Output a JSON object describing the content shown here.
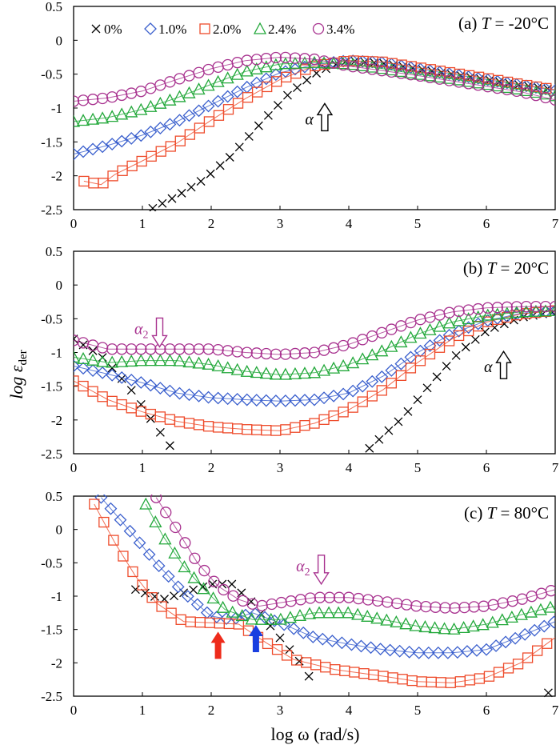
{
  "figure": {
    "ylabel_main": "log ε",
    "ylabel_sub": "der",
    "xlabel": "log ω (rad/s)"
  },
  "legend": [
    {
      "label": "0%",
      "symbol": "×",
      "color": "#000000"
    },
    {
      "label": "1.0%",
      "symbol": "◇",
      "color": "#3a5fcd"
    },
    {
      "label": "2.0%",
      "symbol": "□",
      "color": "#ee4b2b"
    },
    {
      "label": "2.4%",
      "symbol": "△",
      "color": "#22a83a"
    },
    {
      "label": "3.4%",
      "symbol": "○",
      "color": "#a8328f"
    }
  ],
  "chart_data": [
    {
      "type": "scatter",
      "title": "(a) T = -20°C",
      "title_prefix": "(a) ",
      "title_var": "T",
      "title_value": " = -20°C",
      "xlim": [
        0,
        7
      ],
      "ylim": [
        -2.5,
        0.5
      ],
      "xticks": [
        "0",
        "1",
        "2",
        "3",
        "4",
        "5",
        "6",
        "7"
      ],
      "yticks": [
        "0.5",
        "0",
        "-0.5",
        "-1",
        "-1.5",
        "-2",
        "-2.5"
      ],
      "annotations": [
        {
          "label": "α",
          "x": 3.65,
          "y": -1.1,
          "direction": "up",
          "color": "#000000"
        }
      ],
      "series": [
        {
          "name": "0%",
          "points": [
            [
              1.15,
              -2.48
            ],
            [
              1.5,
              -2.3
            ],
            [
              1.9,
              -2.05
            ],
            [
              2.3,
              -1.7
            ],
            [
              2.7,
              -1.25
            ],
            [
              3.1,
              -0.82
            ],
            [
              3.5,
              -0.5
            ],
            [
              3.8,
              -0.36
            ],
            [
              4.0,
              -0.3
            ],
            [
              4.5,
              -0.34
            ],
            [
              5.0,
              -0.42
            ],
            [
              5.5,
              -0.5
            ],
            [
              6.0,
              -0.58
            ],
            [
              6.5,
              -0.66
            ],
            [
              7.0,
              -0.73
            ]
          ]
        },
        {
          "name": "1.0%",
          "points": [
            [
              0,
              -1.68
            ],
            [
              0.5,
              -1.55
            ],
            [
              1.0,
              -1.4
            ],
            [
              1.5,
              -1.2
            ],
            [
              2.0,
              -0.95
            ],
            [
              2.5,
              -0.7
            ],
            [
              3.0,
              -0.48
            ],
            [
              3.5,
              -0.36
            ],
            [
              4.0,
              -0.3
            ],
            [
              4.5,
              -0.33
            ],
            [
              5.0,
              -0.42
            ],
            [
              5.5,
              -0.5
            ],
            [
              6.0,
              -0.58
            ],
            [
              6.5,
              -0.66
            ],
            [
              7.0,
              -0.74
            ]
          ]
        },
        {
          "name": "2.0%",
          "points": [
            [
              0.15,
              -2.08
            ],
            [
              0.4,
              -2.13
            ],
            [
              0.6,
              -1.98
            ],
            [
              1.0,
              -1.78
            ],
            [
              1.5,
              -1.52
            ],
            [
              2.0,
              -1.18
            ],
            [
              2.5,
              -0.86
            ],
            [
              3.0,
              -0.58
            ],
            [
              3.5,
              -0.38
            ],
            [
              4.0,
              -0.3
            ],
            [
              4.5,
              -0.32
            ],
            [
              5.0,
              -0.4
            ],
            [
              5.5,
              -0.48
            ],
            [
              6.0,
              -0.56
            ],
            [
              6.5,
              -0.65
            ],
            [
              7.0,
              -0.73
            ]
          ]
        },
        {
          "name": "2.4%",
          "points": [
            [
              0,
              -1.2
            ],
            [
              0.5,
              -1.14
            ],
            [
              1.0,
              -1.02
            ],
            [
              1.5,
              -0.85
            ],
            [
              2.0,
              -0.65
            ],
            [
              2.5,
              -0.46
            ],
            [
              3.0,
              -0.35
            ],
            [
              3.5,
              -0.33
            ],
            [
              4.0,
              -0.35
            ],
            [
              4.5,
              -0.42
            ],
            [
              5.0,
              -0.5
            ],
            [
              5.5,
              -0.57
            ],
            [
              6.0,
              -0.65
            ],
            [
              6.5,
              -0.73
            ],
            [
              7.0,
              -0.82
            ]
          ]
        },
        {
          "name": "3.4%",
          "points": [
            [
              0,
              -0.9
            ],
            [
              0.5,
              -0.85
            ],
            [
              1.0,
              -0.75
            ],
            [
              1.5,
              -0.58
            ],
            [
              2.0,
              -0.42
            ],
            [
              2.5,
              -0.3
            ],
            [
              3.0,
              -0.25
            ],
            [
              3.5,
              -0.28
            ],
            [
              4.0,
              -0.38
            ],
            [
              4.5,
              -0.45
            ],
            [
              5.0,
              -0.52
            ],
            [
              5.5,
              -0.6
            ],
            [
              6.0,
              -0.68
            ],
            [
              6.5,
              -0.76
            ],
            [
              7.0,
              -0.88
            ]
          ]
        }
      ]
    },
    {
      "type": "scatter",
      "title": "(b) T = 20°C",
      "title_prefix": "(b) ",
      "title_var": "T",
      "title_value": " = 20°C",
      "xlim": [
        0,
        7
      ],
      "ylim": [
        -2.5,
        0.5
      ],
      "xticks": [
        "0",
        "1",
        "2",
        "3",
        "4",
        "5",
        "6",
        "7"
      ],
      "yticks": [
        "0.5",
        "0",
        "-0.5",
        "-1",
        "-1.5",
        "-2",
        "-2.5"
      ],
      "annotations": [
        {
          "label": "α2",
          "x": 1.25,
          "y": -0.75,
          "direction": "down",
          "color": "#a8328f"
        },
        {
          "label": "α",
          "x": 6.25,
          "y": -1.15,
          "direction": "up",
          "color": "#000000"
        }
      ],
      "series": [
        {
          "name": "0%",
          "points": [
            [
              0,
              -0.8
            ],
            [
              0.4,
              -1.05
            ],
            [
              0.8,
              -1.5
            ],
            [
              1.2,
              -2.1
            ],
            [
              1.45,
              -2.45
            ],
            [
              4.3,
              -2.42
            ],
            [
              4.8,
              -1.95
            ],
            [
              5.2,
              -1.45
            ],
            [
              5.6,
              -1.0
            ],
            [
              6.0,
              -0.68
            ],
            [
              6.5,
              -0.48
            ],
            [
              7.0,
              -0.4
            ]
          ]
        },
        {
          "name": "1.0%",
          "points": [
            [
              0,
              -1.2
            ],
            [
              0.5,
              -1.32
            ],
            [
              1.0,
              -1.45
            ],
            [
              1.5,
              -1.6
            ],
            [
              2.0,
              -1.67
            ],
            [
              2.5,
              -1.7
            ],
            [
              3.0,
              -1.72
            ],
            [
              3.5,
              -1.7
            ],
            [
              4.0,
              -1.6
            ],
            [
              4.5,
              -1.35
            ],
            [
              5.0,
              -1.0
            ],
            [
              5.5,
              -0.72
            ],
            [
              6.0,
              -0.53
            ],
            [
              6.5,
              -0.42
            ],
            [
              7.0,
              -0.38
            ]
          ]
        },
        {
          "name": "2.0%",
          "points": [
            [
              0,
              -1.42
            ],
            [
              0.5,
              -1.7
            ],
            [
              1.0,
              -1.88
            ],
            [
              1.5,
              -2.02
            ],
            [
              2.0,
              -2.1
            ],
            [
              2.5,
              -2.14
            ],
            [
              3.0,
              -2.16
            ],
            [
              3.5,
              -2.05
            ],
            [
              4.0,
              -1.85
            ],
            [
              4.5,
              -1.55
            ],
            [
              5.0,
              -1.15
            ],
            [
              5.5,
              -0.8
            ],
            [
              6.0,
              -0.55
            ],
            [
              6.5,
              -0.43
            ],
            [
              7.0,
              -0.38
            ]
          ]
        },
        {
          "name": "2.4%",
          "points": [
            [
              0,
              -1.07
            ],
            [
              0.5,
              -1.15
            ],
            [
              1.0,
              -1.12
            ],
            [
              1.5,
              -1.12
            ],
            [
              2.0,
              -1.18
            ],
            [
              2.5,
              -1.28
            ],
            [
              3.0,
              -1.33
            ],
            [
              3.5,
              -1.3
            ],
            [
              4.0,
              -1.18
            ],
            [
              4.5,
              -0.97
            ],
            [
              5.0,
              -0.73
            ],
            [
              5.5,
              -0.55
            ],
            [
              6.0,
              -0.45
            ],
            [
              6.5,
              -0.4
            ],
            [
              7.0,
              -0.38
            ]
          ]
        },
        {
          "name": "3.4%",
          "points": [
            [
              0,
              -0.82
            ],
            [
              0.5,
              -0.95
            ],
            [
              1.0,
              -0.95
            ],
            [
              1.5,
              -0.95
            ],
            [
              2.0,
              -0.95
            ],
            [
              2.5,
              -1.0
            ],
            [
              3.0,
              -1.03
            ],
            [
              3.5,
              -1.0
            ],
            [
              4.0,
              -0.88
            ],
            [
              4.5,
              -0.7
            ],
            [
              5.0,
              -0.52
            ],
            [
              5.5,
              -0.4
            ],
            [
              6.0,
              -0.34
            ],
            [
              6.5,
              -0.32
            ],
            [
              7.0,
              -0.32
            ]
          ]
        }
      ]
    },
    {
      "type": "scatter",
      "title": "(c) T = 80°C",
      "title_prefix": "(c) ",
      "title_var": "T",
      "title_value": " = 80°C",
      "xlim": [
        0,
        7
      ],
      "ylim": [
        -2.5,
        0.5
      ],
      "xticks": [
        "0",
        "1",
        "2",
        "3",
        "4",
        "5",
        "6",
        "7"
      ],
      "yticks": [
        "0.5",
        "0",
        "-0.5",
        "-1",
        "-1.5",
        "-2",
        "-2.5"
      ],
      "annotations": [
        {
          "label": "α2",
          "x": 3.6,
          "y": -0.65,
          "direction": "down",
          "color": "#a8328f"
        },
        {
          "label": "",
          "x": 2.1,
          "y": -1.7,
          "direction": "up",
          "color": "#ee2b1b",
          "filled": true
        },
        {
          "label": "",
          "x": 2.65,
          "y": -1.6,
          "direction": "up",
          "color": "#1a3fe0",
          "filled": true
        }
      ],
      "series": [
        {
          "name": "0%",
          "points": [
            [
              0.9,
              -0.9
            ],
            [
              1.3,
              -1.05
            ],
            [
              1.6,
              -0.95
            ],
            [
              2.0,
              -0.82
            ],
            [
              2.3,
              -0.82
            ],
            [
              2.6,
              -1.1
            ],
            [
              2.9,
              -1.5
            ],
            [
              3.3,
              -2.0
            ],
            [
              3.55,
              -2.42
            ],
            [
              6.9,
              -2.45
            ]
          ]
        },
        {
          "name": "1.0%",
          "points": [
            [
              0.4,
              0.48
            ],
            [
              0.8,
              0.0
            ],
            [
              1.2,
              -0.5
            ],
            [
              1.6,
              -0.95
            ],
            [
              2.0,
              -1.3
            ],
            [
              2.3,
              -1.35
            ],
            [
              2.6,
              -1.25
            ],
            [
              3.0,
              -1.4
            ],
            [
              3.5,
              -1.62
            ],
            [
              4.0,
              -1.72
            ],
            [
              4.5,
              -1.8
            ],
            [
              5.0,
              -1.85
            ],
            [
              5.5,
              -1.85
            ],
            [
              6.0,
              -1.8
            ],
            [
              6.5,
              -1.6
            ],
            [
              7.0,
              -1.38
            ]
          ]
        },
        {
          "name": "2.0%",
          "points": [
            [
              0.3,
              0.38
            ],
            [
              0.6,
              -0.2
            ],
            [
              0.9,
              -0.7
            ],
            [
              1.2,
              -1.1
            ],
            [
              1.6,
              -1.38
            ],
            [
              2.0,
              -1.4
            ],
            [
              2.4,
              -1.42
            ],
            [
              2.8,
              -1.7
            ],
            [
              3.2,
              -1.95
            ],
            [
              3.8,
              -2.1
            ],
            [
              4.5,
              -2.2
            ],
            [
              5.0,
              -2.28
            ],
            [
              5.5,
              -2.3
            ],
            [
              6.0,
              -2.22
            ],
            [
              6.5,
              -2.0
            ],
            [
              7.0,
              -1.62
            ]
          ]
        },
        {
          "name": "2.4%",
          "points": [
            [
              1.05,
              0.38
            ],
            [
              1.3,
              -0.1
            ],
            [
              1.6,
              -0.55
            ],
            [
              1.9,
              -0.9
            ],
            [
              2.2,
              -1.2
            ],
            [
              2.6,
              -1.35
            ],
            [
              3.0,
              -1.35
            ],
            [
              3.5,
              -1.25
            ],
            [
              4.0,
              -1.25
            ],
            [
              4.5,
              -1.35
            ],
            [
              5.0,
              -1.45
            ],
            [
              5.5,
              -1.5
            ],
            [
              6.0,
              -1.42
            ],
            [
              6.5,
              -1.28
            ],
            [
              7.0,
              -1.15
            ]
          ]
        },
        {
          "name": "3.4%",
          "points": [
            [
              1.2,
              0.48
            ],
            [
              1.5,
              0.0
            ],
            [
              1.8,
              -0.5
            ],
            [
              2.1,
              -0.85
            ],
            [
              2.4,
              -1.05
            ],
            [
              2.7,
              -1.15
            ],
            [
              3.0,
              -1.1
            ],
            [
              3.5,
              -1.02
            ],
            [
              4.0,
              -1.02
            ],
            [
              4.5,
              -1.08
            ],
            [
              5.0,
              -1.15
            ],
            [
              5.5,
              -1.18
            ],
            [
              6.0,
              -1.15
            ],
            [
              6.5,
              -1.05
            ],
            [
              7.0,
              -0.9
            ]
          ]
        }
      ]
    }
  ]
}
